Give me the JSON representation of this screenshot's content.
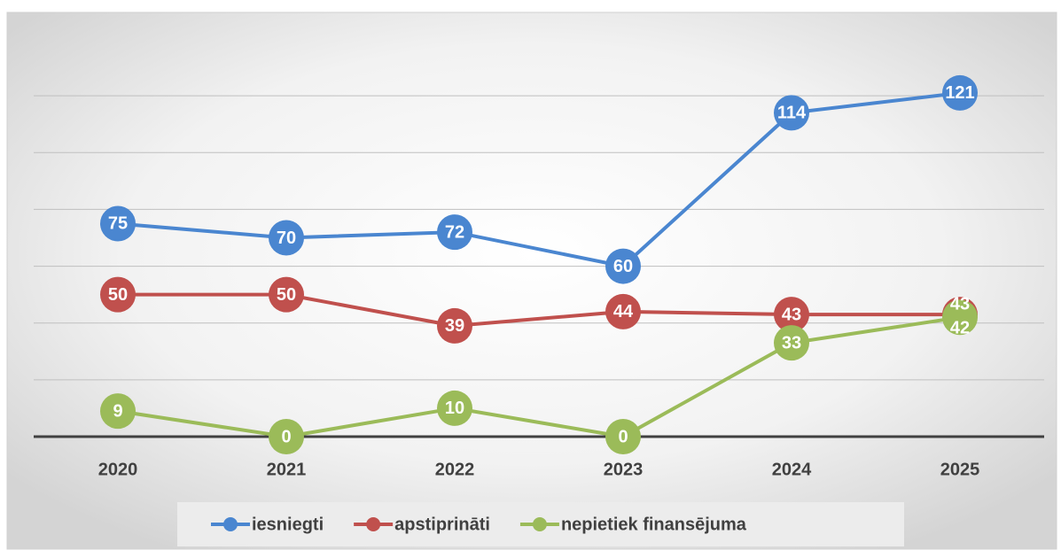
{
  "chart_data": {
    "type": "line",
    "categories": [
      "2020",
      "2021",
      "2022",
      "2023",
      "2024",
      "2025"
    ],
    "series": [
      {
        "name": "iesniegti",
        "color": "#4a86d0",
        "values": [
          75,
          70,
          72,
          60,
          114,
          121
        ]
      },
      {
        "name": "apstiprināti",
        "color": "#c0504d",
        "values": [
          50,
          50,
          39,
          44,
          43,
          43
        ]
      },
      {
        "name": "nepietiek finansējuma",
        "color": "#9bbb59",
        "values": [
          9,
          0,
          10,
          0,
          33,
          42
        ]
      }
    ],
    "ylim": [
      0,
      140
    ],
    "yticks": [
      0,
      20,
      40,
      60,
      80,
      100,
      120
    ],
    "grid": true,
    "legend": "bottom"
  }
}
